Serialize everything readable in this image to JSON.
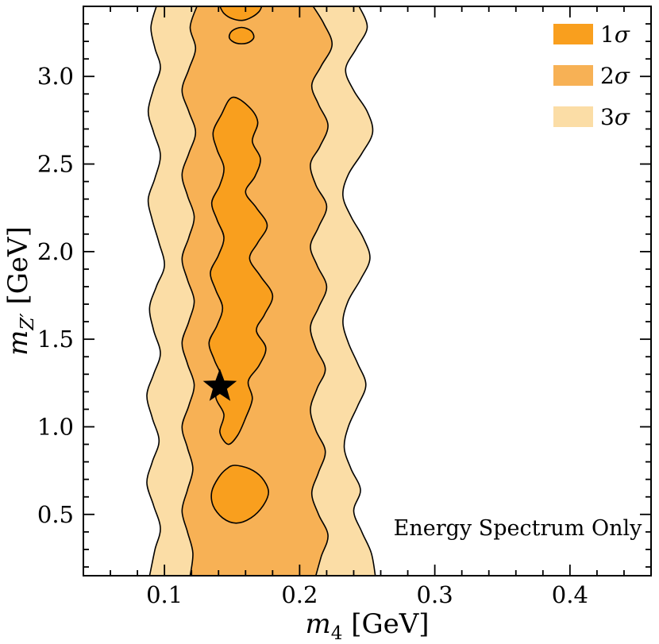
{
  "chart_data": {
    "type": "contour",
    "title": "",
    "annotation": "Energy Spectrum Only",
    "xlabel": {
      "var": "m",
      "sub": "4",
      "sub_style": "normal",
      "unit": "[GeV]"
    },
    "ylabel": {
      "var": "m",
      "sub": "Z′",
      "sub_style": "italic",
      "unit": "[GeV]"
    },
    "xlim": [
      0.04,
      0.46
    ],
    "ylim": [
      0.15,
      3.4
    ],
    "x_major_ticks": [
      0.1,
      0.2,
      0.3,
      0.4
    ],
    "x_major_labels": [
      "0.1",
      "0.2",
      "0.3",
      "0.4"
    ],
    "x_minor_step": 0.02,
    "y_major_ticks": [
      0.5,
      1.0,
      1.5,
      2.0,
      2.5,
      3.0
    ],
    "y_major_labels": [
      "0.5",
      "1.0",
      "1.5",
      "2.0",
      "2.5",
      "3.0"
    ],
    "y_minor_step": 0.1,
    "grid": false,
    "legend": {
      "position": "top-right",
      "entries": [
        {
          "num": "1",
          "sym": "σ",
          "color": "#f99f1e"
        },
        {
          "num": "2",
          "sym": "σ",
          "color": "#f7b155"
        },
        {
          "num": "3",
          "sym": "σ",
          "color": "#fbdda6"
        }
      ]
    },
    "best_fit": {
      "x": 0.141,
      "y": 1.23,
      "marker": "star",
      "color": "#000000"
    },
    "colors": {
      "sigma1": "#f99f1e",
      "sigma2": "#f7b155",
      "sigma3": "#fbdda6",
      "contour_line": "#000000"
    },
    "regions": [
      {
        "name": "3-sigma-band",
        "sigma": "3σ",
        "color": "#fbdda6",
        "type": "band",
        "left": [
          [
            0.094,
            3.4
          ],
          [
            0.09,
            3.28
          ],
          [
            0.093,
            3.16
          ],
          [
            0.097,
            3.05
          ],
          [
            0.092,
            2.93
          ],
          [
            0.088,
            2.8
          ],
          [
            0.092,
            2.68
          ],
          [
            0.097,
            2.55
          ],
          [
            0.093,
            2.42
          ],
          [
            0.088,
            2.3
          ],
          [
            0.091,
            2.18
          ],
          [
            0.096,
            2.05
          ],
          [
            0.1,
            1.92
          ],
          [
            0.094,
            1.8
          ],
          [
            0.089,
            1.68
          ],
          [
            0.092,
            1.55
          ],
          [
            0.097,
            1.42
          ],
          [
            0.092,
            1.3
          ],
          [
            0.087,
            1.18
          ],
          [
            0.091,
            1.05
          ],
          [
            0.096,
            0.92
          ],
          [
            0.091,
            0.8
          ],
          [
            0.087,
            0.68
          ],
          [
            0.092,
            0.55
          ],
          [
            0.097,
            0.42
          ],
          [
            0.093,
            0.3
          ],
          [
            0.089,
            0.15
          ]
        ],
        "right": [
          [
            0.244,
            3.4
          ],
          [
            0.25,
            3.28
          ],
          [
            0.242,
            3.16
          ],
          [
            0.234,
            3.04
          ],
          [
            0.24,
            2.92
          ],
          [
            0.25,
            2.8
          ],
          [
            0.254,
            2.68
          ],
          [
            0.246,
            2.56
          ],
          [
            0.236,
            2.44
          ],
          [
            0.232,
            2.32
          ],
          [
            0.238,
            2.2
          ],
          [
            0.247,
            2.08
          ],
          [
            0.252,
            1.96
          ],
          [
            0.245,
            1.84
          ],
          [
            0.236,
            1.72
          ],
          [
            0.232,
            1.6
          ],
          [
            0.236,
            1.48
          ],
          [
            0.243,
            1.36
          ],
          [
            0.249,
            1.24
          ],
          [
            0.243,
            1.12
          ],
          [
            0.236,
            1.0
          ],
          [
            0.233,
            0.88
          ],
          [
            0.238,
            0.76
          ],
          [
            0.245,
            0.64
          ],
          [
            0.24,
            0.52
          ],
          [
            0.246,
            0.4
          ],
          [
            0.253,
            0.28
          ],
          [
            0.256,
            0.15
          ]
        ]
      },
      {
        "name": "2-sigma-band",
        "sigma": "2σ",
        "color": "#f7b155",
        "type": "band",
        "left": [
          [
            0.124,
            3.4
          ],
          [
            0.119,
            3.28
          ],
          [
            0.123,
            3.16
          ],
          [
            0.118,
            3.04
          ],
          [
            0.113,
            2.92
          ],
          [
            0.118,
            2.8
          ],
          [
            0.123,
            2.68
          ],
          [
            0.118,
            2.56
          ],
          [
            0.113,
            2.44
          ],
          [
            0.117,
            2.32
          ],
          [
            0.122,
            2.2
          ],
          [
            0.118,
            2.08
          ],
          [
            0.113,
            1.96
          ],
          [
            0.117,
            1.84
          ],
          [
            0.122,
            1.72
          ],
          [
            0.118,
            1.6
          ],
          [
            0.113,
            1.48
          ],
          [
            0.117,
            1.36
          ],
          [
            0.122,
            1.24
          ],
          [
            0.118,
            1.12
          ],
          [
            0.113,
            1.0
          ],
          [
            0.117,
            0.88
          ],
          [
            0.121,
            0.76
          ],
          [
            0.117,
            0.64
          ],
          [
            0.113,
            0.52
          ],
          [
            0.117,
            0.4
          ],
          [
            0.121,
            0.28
          ],
          [
            0.119,
            0.15
          ]
        ],
        "right": [
          [
            0.21,
            3.4
          ],
          [
            0.218,
            3.3
          ],
          [
            0.224,
            3.18
          ],
          [
            0.216,
            3.06
          ],
          [
            0.209,
            2.95
          ],
          [
            0.214,
            2.84
          ],
          [
            0.221,
            2.72
          ],
          [
            0.215,
            2.6
          ],
          [
            0.208,
            2.5
          ],
          [
            0.212,
            2.38
          ],
          [
            0.22,
            2.26
          ],
          [
            0.214,
            2.14
          ],
          [
            0.208,
            2.03
          ],
          [
            0.213,
            1.92
          ],
          [
            0.22,
            1.8
          ],
          [
            0.214,
            1.68
          ],
          [
            0.208,
            1.57
          ],
          [
            0.212,
            1.45
          ],
          [
            0.219,
            1.33
          ],
          [
            0.213,
            1.22
          ],
          [
            0.208,
            1.1
          ],
          [
            0.212,
            0.98
          ],
          [
            0.219,
            0.86
          ],
          [
            0.214,
            0.74
          ],
          [
            0.209,
            0.62
          ],
          [
            0.214,
            0.5
          ],
          [
            0.221,
            0.38
          ],
          [
            0.216,
            0.26
          ],
          [
            0.212,
            0.15
          ]
        ]
      },
      {
        "name": "1-sigma-main",
        "sigma": "1σ",
        "color": "#f99f1e",
        "type": "closed",
        "points": [
          [
            0.15,
            2.88
          ],
          [
            0.162,
            2.83
          ],
          [
            0.169,
            2.74
          ],
          [
            0.165,
            2.63
          ],
          [
            0.171,
            2.53
          ],
          [
            0.167,
            2.43
          ],
          [
            0.16,
            2.34
          ],
          [
            0.168,
            2.25
          ],
          [
            0.176,
            2.15
          ],
          [
            0.169,
            2.05
          ],
          [
            0.163,
            1.96
          ],
          [
            0.171,
            1.86
          ],
          [
            0.18,
            1.75
          ],
          [
            0.174,
            1.64
          ],
          [
            0.168,
            1.55
          ],
          [
            0.175,
            1.45
          ],
          [
            0.17,
            1.35
          ],
          [
            0.162,
            1.26
          ],
          [
            0.165,
            1.16
          ],
          [
            0.16,
            1.05
          ],
          [
            0.154,
            0.95
          ],
          [
            0.147,
            0.9
          ],
          [
            0.141,
            0.97
          ],
          [
            0.144,
            1.07
          ],
          [
            0.138,
            1.17
          ],
          [
            0.142,
            1.28
          ],
          [
            0.137,
            1.38
          ],
          [
            0.133,
            1.48
          ],
          [
            0.139,
            1.58
          ],
          [
            0.143,
            1.68
          ],
          [
            0.138,
            1.78
          ],
          [
            0.134,
            1.88
          ],
          [
            0.14,
            1.98
          ],
          [
            0.144,
            2.08
          ],
          [
            0.139,
            2.18
          ],
          [
            0.135,
            2.28
          ],
          [
            0.141,
            2.38
          ],
          [
            0.144,
            2.48
          ],
          [
            0.139,
            2.58
          ],
          [
            0.136,
            2.68
          ],
          [
            0.142,
            2.78
          ]
        ]
      },
      {
        "name": "1-sigma-lower",
        "sigma": "1σ",
        "color": "#f99f1e",
        "type": "closed",
        "points": [
          [
            0.152,
            0.78
          ],
          [
            0.163,
            0.76
          ],
          [
            0.172,
            0.71
          ],
          [
            0.177,
            0.63
          ],
          [
            0.173,
            0.55
          ],
          [
            0.164,
            0.48
          ],
          [
            0.153,
            0.45
          ],
          [
            0.143,
            0.48
          ],
          [
            0.136,
            0.55
          ],
          [
            0.135,
            0.63
          ],
          [
            0.14,
            0.71
          ],
          [
            0.146,
            0.76
          ]
        ]
      },
      {
        "name": "1-sigma-top",
        "sigma": "1σ",
        "color": "#f99f1e",
        "type": "open-top",
        "points": [
          [
            0.141,
            3.4
          ],
          [
            0.144,
            3.36
          ],
          [
            0.15,
            3.33
          ],
          [
            0.158,
            3.32
          ],
          [
            0.165,
            3.34
          ],
          [
            0.17,
            3.37
          ],
          [
            0.172,
            3.4
          ]
        ]
      },
      {
        "name": "1-sigma-top-island",
        "sigma": "1σ",
        "color": "#f99f1e",
        "type": "closed",
        "points": [
          [
            0.157,
            3.28
          ],
          [
            0.164,
            3.26
          ],
          [
            0.166,
            3.22
          ],
          [
            0.161,
            3.19
          ],
          [
            0.153,
            3.19
          ],
          [
            0.148,
            3.22
          ],
          [
            0.15,
            3.26
          ]
        ]
      }
    ]
  }
}
